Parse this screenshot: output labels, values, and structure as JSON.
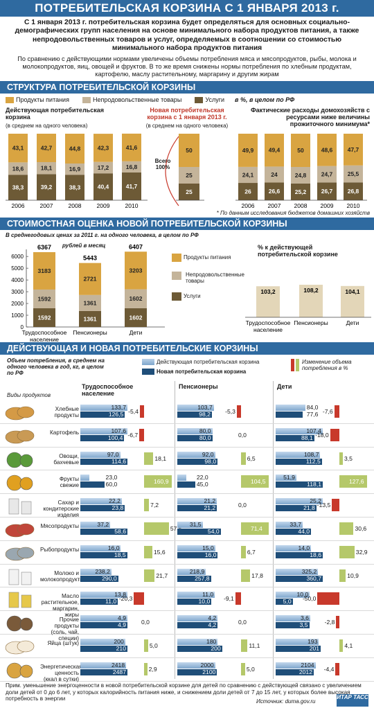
{
  "header": {
    "title": "ПОТРЕБИТЕЛЬСКАЯ КОРЗИНА С 1 ЯНВАРЯ 2013 г."
  },
  "intro": {
    "lead": "С 1 января 2013 г. потребительская корзина будет определяться для основных социально-демографических групп населения на основе минимального набора продуктов питания, а также непродовольственных товаров и услуг, определяемых в соотношении со стоимостью минимального набора продуктов питания",
    "body": "По сравнению с действующими нормами увеличены объемы потребления мяса и мясопродуктов, рыбы, молока и молокопродуктов, яиц, овощей и фруктов. В то же время снижены нормы потребления по хлебным продуктам, картофелю, маслу растительному, маргарину и другим жирам"
  },
  "section1": {
    "title": "СТРУКТУРА ПОТРЕБИТЕЛЬСКОЙ КОРЗИНЫ",
    "legend": {
      "food": "Продукты питания",
      "nonfood": "Непродовольственные товары",
      "services": "Услуги",
      "unit": "в %, в целом по РФ"
    },
    "left_title": "Действующая потребительская корзина",
    "left_sub": "(в среднем на одного человека)",
    "mid_title": "Новая потребительская корзина с 1 января 2013 г.",
    "mid_sub": "(в среднем на одного человека)",
    "mid_total": "Всего 100%",
    "right_title": "Фактические расходы домохозяйств с ресурсами ниже величины прожиточного минимума*",
    "footnote": "* По данным исследования бюджетов домашних хозяйств"
  },
  "section2": {
    "title": "СТОИМОСТНАЯ ОЦЕНКА НОВОЙ ПОТРЕБИТЕЛЬСКОЙ КОРЗИНЫ",
    "subtitle": "В среднегодовых ценах за 2011 г. на одного человека, в целом по РФ",
    "unit": "рублей в месяц",
    "legend": {
      "food": "Продукты питания",
      "nonfood": "Непродовольственные товары",
      "services": "Услуги"
    },
    "right_title": "% к действующей потребительской корзине"
  },
  "section3": {
    "title": "ДЕЙСТВУЮЩАЯ И НОВАЯ ПОТРЕБИТЕЛЬСКИЕ КОРЗИНЫ",
    "desc": "Объем потребления, в среднем на одного человека в год, кг, в целом по РФ",
    "legend_current": "Действующая потребительская корзина",
    "legend_new": "Новая потребительская корзина",
    "legend_change": "Изменение объема потребления в %",
    "col_products": "Виды продуктов",
    "groups": [
      "Трудоспособное население",
      "Пенсионеры",
      "Дети"
    ]
  },
  "footer": {
    "note": "Прим. уменьшение энергоценности в новой потребительской корзине для детей по сравнению с действующей связано с увеличением доли детей от 0 до 6 лет, у которых калорийность питания ниже, и снижением доли детей от 7 до 15 лет, у которых более высокая потребность в энергии",
    "source": "Источник: duma.gov.ru",
    "agency": "ИТАР ТАСС"
  },
  "colors": {
    "food": "#d9a441",
    "nonfood": "#c4b49a",
    "services": "#6d5a36",
    "current": "#8fb3d6",
    "new": "#1f4e79",
    "pos": "#b5c86a",
    "neg": "#c8392b",
    "header": "#2f6aa0"
  },
  "chart_data": [
    {
      "type": "bar",
      "name": "structure_current",
      "categories": [
        "2006",
        "2007",
        "2008",
        "2009",
        "2010"
      ],
      "series": [
        {
          "name": "Услуги",
          "values": [
            38.3,
            39.2,
            38.3,
            40.4,
            41.7
          ]
        },
        {
          "name": "Непродовольственные товары",
          "values": [
            18.6,
            18.1,
            16.9,
            17.2,
            16.8
          ]
        },
        {
          "name": "Продукты питания",
          "values": [
            43.1,
            42.7,
            44.8,
            42.3,
            41.6
          ]
        }
      ]
    },
    {
      "type": "bar",
      "name": "structure_new",
      "categories": [
        ""
      ],
      "series": [
        {
          "name": "Услуги",
          "values": [
            25
          ]
        },
        {
          "name": "Непродовольственные товары",
          "values": [
            25
          ]
        },
        {
          "name": "Продукты питания",
          "values": [
            50
          ]
        }
      ]
    },
    {
      "type": "bar",
      "name": "structure_actual",
      "categories": [
        "2006",
        "2007",
        "2008",
        "2009",
        "2010"
      ],
      "series": [
        {
          "name": "Услуги",
          "values": [
            26.0,
            26.6,
            25.2,
            26.7,
            26.8
          ]
        },
        {
          "name": "Непродовольственные товары",
          "values": [
            24.1,
            24.0,
            24.8,
            24.7,
            25.5
          ]
        },
        {
          "name": "Продукты питания",
          "values": [
            49.9,
            49.4,
            50.0,
            48.6,
            47.7
          ]
        }
      ]
    },
    {
      "type": "bar",
      "name": "cost_new",
      "categories": [
        "Трудоспособное население",
        "Пенсионеры",
        "Дети"
      ],
      "totals": [
        "6367",
        "5443",
        "6407"
      ],
      "yticks": [
        "0",
        "1000",
        "2000",
        "3000",
        "4000",
        "5000",
        "6000"
      ],
      "ylim": [
        0,
        6600
      ],
      "series": [
        {
          "name": "Услуги",
          "values": [
            1592,
            1361,
            1602
          ]
        },
        {
          "name": "Непродовольственные товары",
          "values": [
            1592,
            1361,
            1602
          ]
        },
        {
          "name": "Продукты питания",
          "values": [
            3183,
            2721,
            3203
          ]
        }
      ]
    },
    {
      "type": "bar",
      "name": "pct_to_current",
      "categories": [
        "Трудоспособное население",
        "Пенсионеры",
        "Дети"
      ],
      "values": [
        103.2,
        108.2,
        104.1
      ]
    },
    {
      "type": "table",
      "name": "consumption",
      "rows": [
        {
          "name": "Хлебные продукты",
          "icon": "bread-icon",
          "tr": [
            "133,7",
            "126,5",
            "-5,4"
          ],
          "pe": [
            "103,7",
            "98,2",
            "-5,3"
          ],
          "de": [
            "84,0",
            "77,6",
            "-7,6"
          ],
          "cur": [
            133.7,
            103.7,
            84.0
          ],
          "nw": [
            126.5,
            98.2,
            77.6
          ],
          "ch": [
            -5.4,
            -5.3,
            -7.6
          ]
        },
        {
          "name": "Картофель",
          "icon": "potato-icon",
          "tr": [
            "107,6",
            "100,4",
            "-6,7"
          ],
          "pe": [
            "80,0",
            "80,0",
            "0,0"
          ],
          "de": [
            "107,4",
            "88,1",
            "-18,0"
          ],
          "cur": [
            107.6,
            80.0,
            107.4
          ],
          "nw": [
            100.4,
            80.0,
            88.1
          ],
          "ch": [
            -6.7,
            0,
            -18.0
          ]
        },
        {
          "name": "Овощи, бахчевые",
          "icon": "vegetables-icon",
          "tr": [
            "97,0",
            "114,6",
            "18,1"
          ],
          "pe": [
            "92,0",
            "98,0",
            "6,5"
          ],
          "de": [
            "108,7",
            "112,5",
            "3,5"
          ],
          "cur": [
            97.0,
            92.0,
            108.7
          ],
          "nw": [
            114.6,
            98.0,
            112.5
          ],
          "ch": [
            18.1,
            6.5,
            3.5
          ]
        },
        {
          "name": "Фрукты свежие",
          "icon": "fruits-icon",
          "tr": [
            "23,0",
            "60,0",
            "160,9"
          ],
          "pe": [
            "22,0",
            "45,0",
            "104,5"
          ],
          "de": [
            "51,9",
            "118,1",
            "127,6"
          ],
          "cur": [
            23.0,
            22.0,
            51.9
          ],
          "nw": [
            60.0,
            45.0,
            118.1
          ],
          "ch": [
            160.9,
            104.5,
            127.6
          ]
        },
        {
          "name": "Сахар и кондитерские изделия",
          "icon": "sugar-icon",
          "tr": [
            "22,2",
            "23,8",
            "7,2"
          ],
          "pe": [
            "21,2",
            "21,2",
            "0,0"
          ],
          "de": [
            "25,2",
            "21,8",
            "-13,5"
          ],
          "cur": [
            22.2,
            21.2,
            25.2
          ],
          "nw": [
            23.8,
            21.2,
            21.8
          ],
          "ch": [
            7.2,
            0,
            -13.5
          ]
        },
        {
          "name": "Мясопродукты",
          "icon": "meat-icon",
          "tr": [
            "37,2",
            "58,6",
            "57,5"
          ],
          "pe": [
            "31,5",
            "54,0",
            "71,4"
          ],
          "de": [
            "33,7",
            "44,0",
            "30,6"
          ],
          "cur": [
            37.2,
            31.5,
            33.7
          ],
          "nw": [
            58.6,
            54.0,
            44.0
          ],
          "ch": [
            57.5,
            71.4,
            30.6
          ]
        },
        {
          "name": "Рыбопродукты",
          "icon": "fish-icon",
          "tr": [
            "16,0",
            "18,5",
            "15,6"
          ],
          "pe": [
            "15,0",
            "16,0",
            "6,7"
          ],
          "de": [
            "14,0",
            "18,6",
            "32,9"
          ],
          "cur": [
            16.0,
            15.0,
            14.0
          ],
          "nw": [
            18.5,
            16.0,
            18.6
          ],
          "ch": [
            15.6,
            6.7,
            32.9
          ]
        },
        {
          "name": "Молоко и молокопродукты",
          "icon": "milk-icon",
          "tr": [
            "238,2",
            "290,0",
            "21,7"
          ],
          "pe": [
            "218,9",
            "257,8",
            "17,8"
          ],
          "de": [
            "325,2",
            "360,7",
            "10,9"
          ],
          "cur": [
            238.2,
            218.9,
            325.2
          ],
          "nw": [
            290.0,
            257.8,
            360.7
          ],
          "ch": [
            21.7,
            17.8,
            10.9
          ]
        },
        {
          "name": "Масло растительное, маргарин, жиры",
          "icon": "oil-icon",
          "tr": [
            "13,8",
            "11,0",
            "-20,3"
          ],
          "pe": [
            "11,0",
            "10,0",
            "-9,1"
          ],
          "de": [
            "10,0",
            "5,0",
            "-50,0"
          ],
          "cur": [
            13.8,
            11.0,
            10.0
          ],
          "nw": [
            11.0,
            10.0,
            5.0
          ],
          "ch": [
            -20.3,
            -9.1,
            -50.0
          ]
        },
        {
          "name": "Прочие продукты (соль, чай, специи)",
          "icon": "spices-icon",
          "tr": [
            "4,9",
            "4,9",
            "0,0"
          ],
          "pe": [
            "4,2",
            "4,2",
            "0,0"
          ],
          "de": [
            "3,6",
            "3,5",
            "-2,8"
          ],
          "cur": [
            4.9,
            4.2,
            3.6
          ],
          "nw": [
            4.9,
            4.2,
            3.5
          ],
          "ch": [
            0,
            0,
            -2.8
          ]
        },
        {
          "name": "Яйца (штук)",
          "icon": "eggs-icon",
          "tr": [
            "200",
            "210",
            "5,0"
          ],
          "pe": [
            "180",
            "200",
            "11,1"
          ],
          "de": [
            "193",
            "201",
            "4,1"
          ],
          "cur": [
            200,
            180,
            193
          ],
          "nw": [
            210,
            200,
            201
          ],
          "ch": [
            5.0,
            11.1,
            4.1
          ]
        },
        {
          "name": "Энергетическая ценность (ккал в сутки)",
          "icon": "energy-icon",
          "tr": [
            "2418",
            "2487",
            "2,9"
          ],
          "pe": [
            "2000",
            "2100",
            "5,0"
          ],
          "de": [
            "2104",
            "2012",
            "-4,4"
          ],
          "cur": [
            2418,
            2000,
            2104
          ],
          "nw": [
            2487,
            2100,
            2012
          ],
          "ch": [
            2.9,
            5.0,
            -4.4
          ]
        }
      ]
    }
  ]
}
